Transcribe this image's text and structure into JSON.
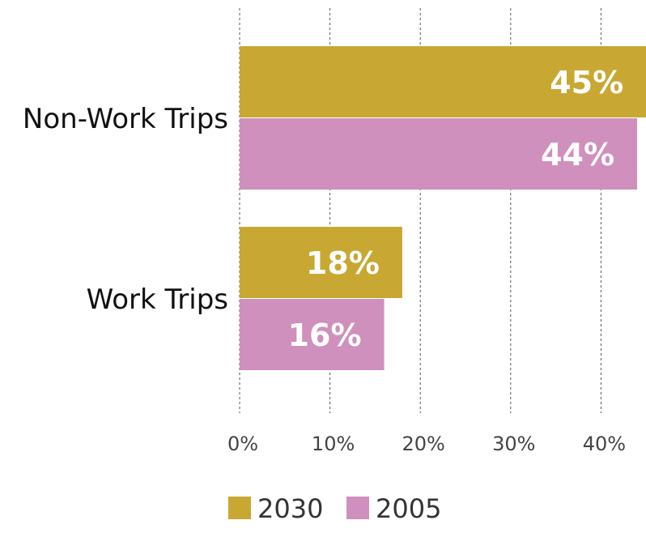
{
  "chart_data": {
    "type": "bar",
    "orientation": "horizontal",
    "categories": [
      "Non-Work Trips",
      "Work Trips"
    ],
    "series": [
      {
        "name": "2030",
        "values": [
          45,
          18
        ],
        "labels": [
          "45%",
          "18%"
        ],
        "color": "#c8a832"
      },
      {
        "name": "2005",
        "values": [
          44,
          16
        ],
        "labels": [
          "44%",
          "16%"
        ],
        "color": "#cf90bd"
      }
    ],
    "xlim": [
      0,
      45
    ],
    "xticks": [
      0,
      10,
      20,
      30,
      40
    ],
    "xtick_labels": [
      "0%",
      "10%",
      "20%",
      "30%",
      "40%"
    ],
    "grid": "vertical dashed",
    "legend": "bottom-center",
    "title": "",
    "xlabel": "",
    "ylabel": ""
  }
}
